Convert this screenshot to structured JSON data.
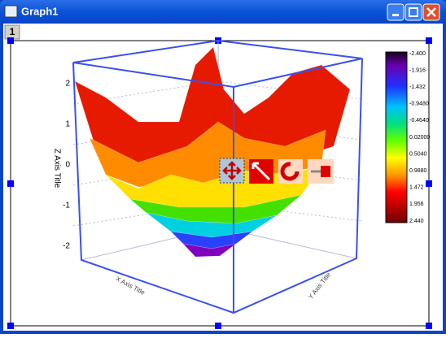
{
  "window": {
    "title": "Graph1",
    "layer_tab": "1"
  },
  "plot": {
    "z_axis_title": "Z Axis Title",
    "x_axis_title": "X Axis Title",
    "y_axis_title": "Y Axis Title",
    "z_ticks": [
      "2",
      "1",
      "0",
      "-1",
      "-2"
    ],
    "colorbar_labels": [
      "-2.400",
      "-1.916",
      "-1.432",
      "-0.9480",
      "-0.4640",
      "0.02000",
      "0.5040",
      "0.9880",
      "1.472",
      "1.956",
      "2.440"
    ]
  }
}
